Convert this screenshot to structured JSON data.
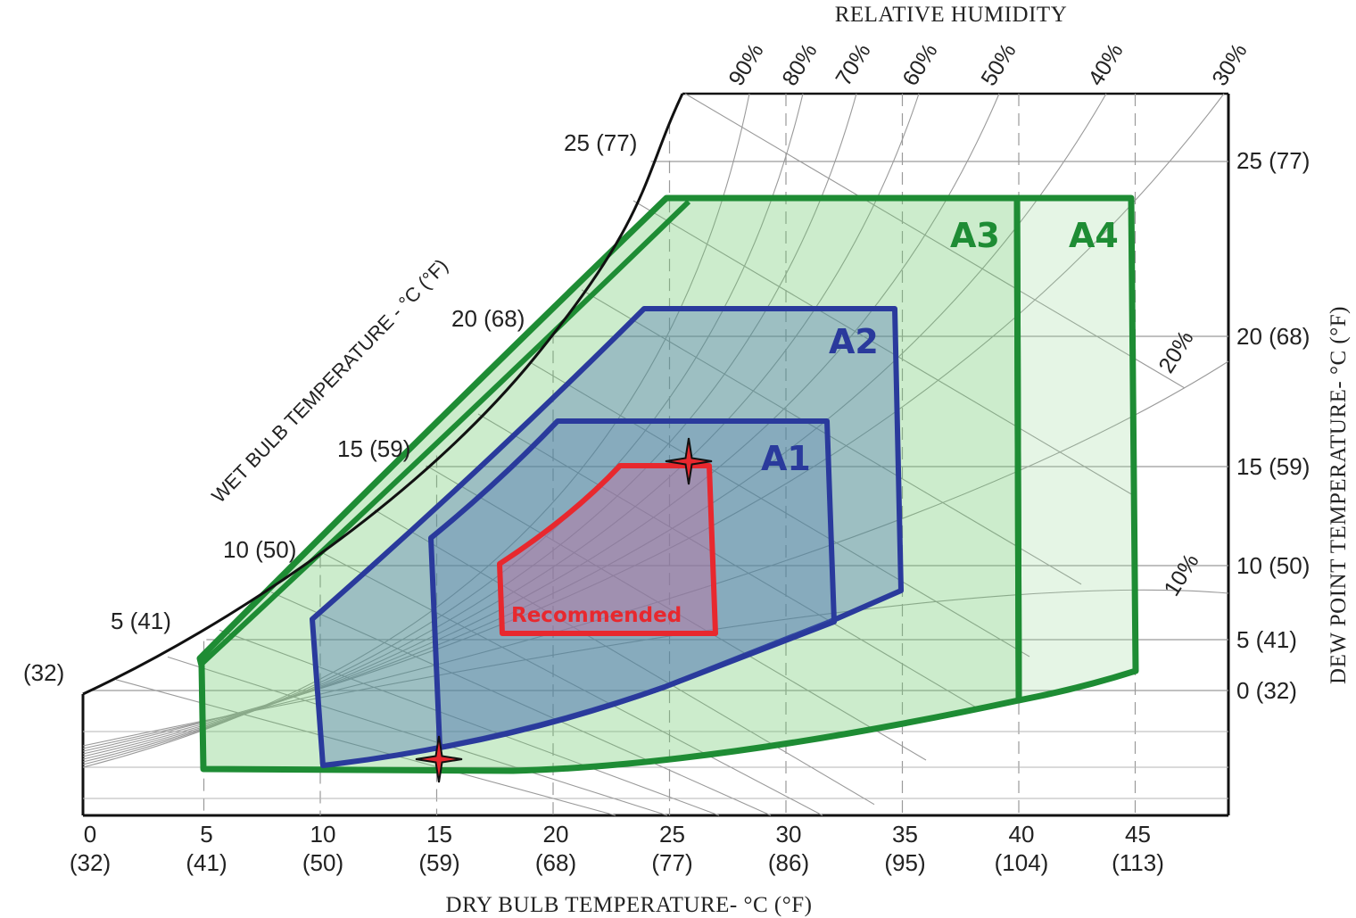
{
  "chart_data": {
    "type": "psychrometric",
    "title": "",
    "top_label": "RELATIVE HUMIDITY",
    "xlabel": "DRY BULB TEMPERATURE- °C (°F)",
    "ylabel_right": "DEW POINT TEMPERATURE- °C (°F)",
    "ylabel_wetbulb": "WET BULB TEMPERATURE - °C (°F)",
    "x_ticks": [
      {
        "c": "0",
        "f": "(32)"
      },
      {
        "c": "5",
        "f": "(41)"
      },
      {
        "c": "10",
        "f": "(50)"
      },
      {
        "c": "15",
        "f": "(59)"
      },
      {
        "c": "20",
        "f": "(68)"
      },
      {
        "c": "25",
        "f": "(77)"
      },
      {
        "c": "30",
        "f": "(86)"
      },
      {
        "c": "35",
        "f": "(95)"
      },
      {
        "c": "40",
        "f": "(104)"
      },
      {
        "c": "45",
        "f": "(113)"
      }
    ],
    "dew_point_ticks": [
      "0 (32)",
      "5 (41)",
      "10 (50)",
      "15 (59)",
      "20 (68)",
      "25 (77)"
    ],
    "wet_bulb_ticks": [
      "(32)",
      "5 (41)",
      "10 (50)",
      "15 (59)",
      "20 (68)",
      "25 (77)"
    ],
    "rh_labels": [
      "90%",
      "80%",
      "70%",
      "60%",
      "50%",
      "40%",
      "30%",
      "20%",
      "10%"
    ],
    "zones": [
      {
        "name": "A4",
        "color": "#1e8c34"
      },
      {
        "name": "A3",
        "color": "#1e8c34"
      },
      {
        "name": "A2",
        "color": "#2a3a9c"
      },
      {
        "name": "A1",
        "color": "#2a3a9c"
      },
      {
        "name": "Recommended",
        "color": "#e8282e"
      }
    ],
    "markers": [
      {
        "name": "recommended-upper-limit",
        "dry_bulb_c": 26,
        "dew_point_c": 15
      },
      {
        "name": "allowable-lower-limit",
        "dry_bulb_c": 15,
        "dew_point_c": -12
      }
    ],
    "grid": true
  }
}
